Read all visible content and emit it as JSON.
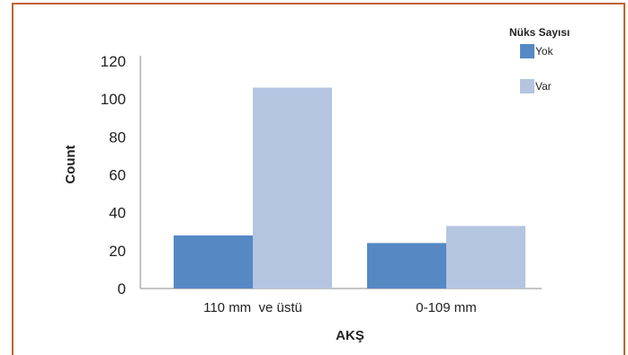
{
  "colors": {
    "frame_border": "#c0622f",
    "axis": "#888888",
    "series_yok": "#5689c4",
    "series_var": "#b4c5e0"
  },
  "chart_data": {
    "type": "bar",
    "title": "",
    "xlabel": "AKŞ",
    "ylabel": "Count",
    "ylim": [
      0,
      120
    ],
    "yticks": [
      0,
      20,
      40,
      60,
      80,
      100,
      120
    ],
    "categories": [
      "110 mm  ve üstü",
      "0-109 mm"
    ],
    "legend": {
      "title": "Nüks Sayısı",
      "position": "top-right"
    },
    "series": [
      {
        "name": "Yok",
        "color": "#5689c4",
        "values": [
          28,
          24
        ]
      },
      {
        "name": "Var",
        "color": "#b4c5e0",
        "values": [
          106,
          33
        ]
      }
    ],
    "grid": false
  }
}
